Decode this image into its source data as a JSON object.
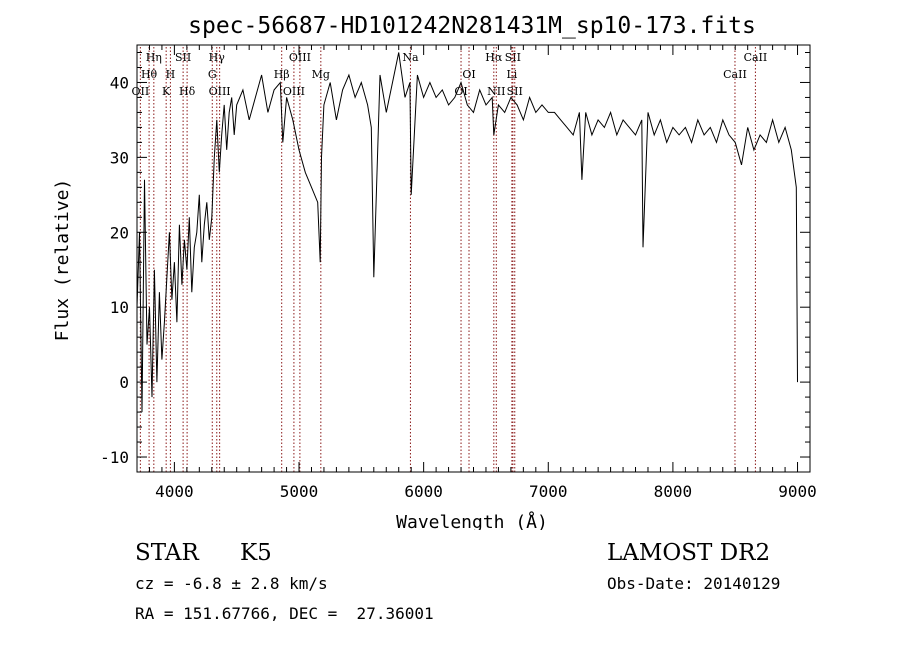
{
  "chart_data": {
    "type": "line",
    "title": "spec-56687-HD101242N281431M_sp10-173.fits",
    "xlabel": "Wavelength (Å)",
    "ylabel": "Flux (relative)",
    "xlim": [
      3700,
      9100
    ],
    "ylim": [
      -12,
      45
    ],
    "xticks": [
      4000,
      5000,
      6000,
      7000,
      8000,
      9000
    ],
    "yticks": [
      -10,
      0,
      10,
      20,
      30,
      40
    ],
    "grid": false,
    "line_color": "#000000",
    "marker_color": "#8b1a1a",
    "series": [
      {
        "x": [
          3700,
          3720,
          3740,
          3760,
          3780,
          3800,
          3820,
          3840,
          3860,
          3880,
          3900,
          3920,
          3940,
          3960,
          3980,
          4000,
          4020,
          4040,
          4060,
          4080,
          4100,
          4120,
          4140,
          4160,
          4180,
          4200,
          4220,
          4240,
          4260,
          4280,
          4300,
          4320,
          4340,
          4360,
          4380,
          4400,
          4420,
          4440,
          4460,
          4480,
          4500,
          4550,
          4600,
          4650,
          4700,
          4750,
          4800,
          4850,
          4870,
          4900,
          4950,
          5000,
          5050,
          5100,
          5150,
          5170,
          5180,
          5200,
          5250,
          5300,
          5350,
          5400,
          5450,
          5500,
          5550,
          5580,
          5600,
          5650,
          5700,
          5750,
          5800,
          5850,
          5890,
          5900,
          5950,
          6000,
          6050,
          6100,
          6150,
          6200,
          6250,
          6300,
          6350,
          6400,
          6450,
          6500,
          6550,
          6563,
          6600,
          6650,
          6700,
          6750,
          6800,
          6850,
          6900,
          6950,
          7000,
          7050,
          7100,
          7150,
          7200,
          7250,
          7270,
          7300,
          7350,
          7400,
          7450,
          7500,
          7550,
          7600,
          7650,
          7700,
          7750,
          7760,
          7800,
          7850,
          7900,
          7950,
          8000,
          8050,
          8100,
          8150,
          8200,
          8250,
          8300,
          8350,
          8400,
          8450,
          8500,
          8550,
          8600,
          8650,
          8700,
          8750,
          8800,
          8850,
          8900,
          8950,
          8990,
          9000
        ],
        "y": [
          10,
          20,
          -4,
          27,
          5,
          10,
          -2,
          15,
          0,
          12,
          3,
          8,
          14,
          20,
          11,
          16,
          8,
          21,
          13,
          19,
          15,
          22,
          12,
          18,
          20,
          25,
          16,
          21,
          24,
          19,
          22,
          30,
          35,
          28,
          33,
          37,
          31,
          36,
          38,
          33,
          37,
          39,
          35,
          38,
          41,
          36,
          39,
          40,
          32,
          38,
          35,
          31,
          28,
          26,
          24,
          16,
          30,
          37,
          40,
          35,
          39,
          41,
          38,
          40,
          37,
          34,
          14,
          41,
          36,
          40,
          44,
          38,
          40,
          25,
          41,
          38,
          40,
          38,
          39,
          37,
          38,
          40,
          37,
          36,
          39,
          37,
          38,
          33,
          37,
          36,
          38,
          37,
          35,
          38,
          36,
          37,
          36,
          36,
          35,
          34,
          33,
          36,
          27,
          36,
          33,
          35,
          34,
          36,
          33,
          35,
          34,
          33,
          35,
          18,
          36,
          33,
          35,
          32,
          34,
          33,
          34,
          32,
          35,
          33,
          34,
          32,
          35,
          33,
          32,
          29,
          34,
          31,
          33,
          32,
          35,
          32,
          34,
          31,
          26,
          0
        ]
      }
    ],
    "lines": [
      {
        "label": "Hη",
        "x": 3835,
        "row": 1
      },
      {
        "label": "Hθ",
        "x": 3797,
        "row": 2
      },
      {
        "label": "OII",
        "x": 3727,
        "row": 3
      },
      {
        "label": "SII",
        "x": 4070,
        "row": 1
      },
      {
        "label": "H",
        "x": 3968,
        "row": 2
      },
      {
        "label": "K",
        "x": 3934,
        "row": 3
      },
      {
        "label": "Hδ",
        "x": 4102,
        "row": 3
      },
      {
        "label": "Hγ",
        "x": 4340,
        "row": 1
      },
      {
        "label": "G",
        "x": 4304,
        "row": 2
      },
      {
        "label": "OIII",
        "x": 4363,
        "row": 3
      },
      {
        "label": "OIII",
        "x": 5007,
        "row": 1
      },
      {
        "label": "Hβ",
        "x": 4861,
        "row": 2
      },
      {
        "label": "OIII",
        "x": 4959,
        "row": 3
      },
      {
        "label": "Mg",
        "x": 5175,
        "row": 2
      },
      {
        "label": "Na",
        "x": 5894,
        "row": 1
      },
      {
        "label": "OI",
        "x": 6364,
        "row": 2
      },
      {
        "label": "OI",
        "x": 6300,
        "row": 3
      },
      {
        "label": "Hα",
        "x": 6563,
        "row": 1
      },
      {
        "label": "SII",
        "x": 6716,
        "row": 1
      },
      {
        "label": "Li",
        "x": 6708,
        "row": 2
      },
      {
        "label": "NII",
        "x": 6583,
        "row": 3
      },
      {
        "label": "SII",
        "x": 6731,
        "row": 3
      },
      {
        "label": "CaII",
        "x": 8662,
        "row": 1
      },
      {
        "label": "CaII",
        "x": 8498,
        "row": 2
      }
    ]
  },
  "info": {
    "class": "STAR",
    "subclass": "K5",
    "survey": "LAMOST DR2",
    "cz": "cz = -6.8 ± 2.8 km/s",
    "obs_date": "Obs-Date: 20140129",
    "coords": "RA = 151.67766, DEC =  27.36001"
  }
}
